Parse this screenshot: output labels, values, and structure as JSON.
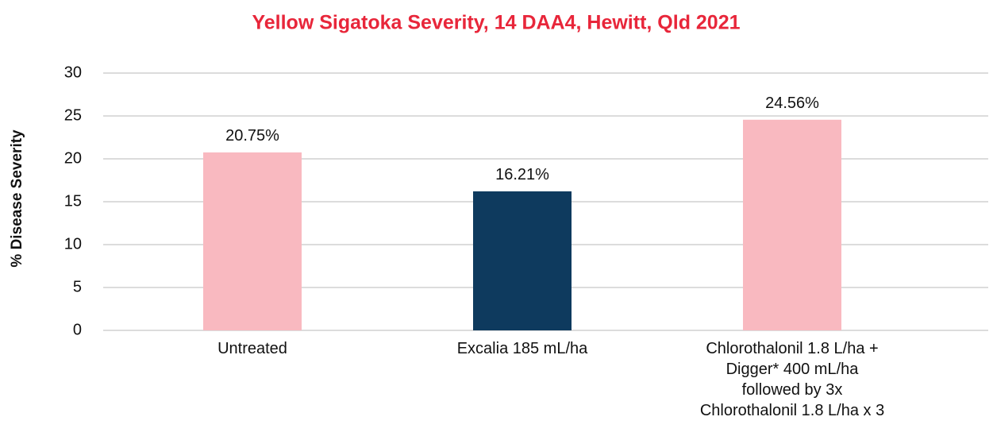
{
  "chart_data": {
    "type": "bar",
    "title": "Yellow Sigatoka Severity, 14 DAA4, Hewitt, Qld 2021",
    "y_label": "% Disease Severity",
    "categories": [
      "Untreated",
      "Excalia 185 mL/ha",
      "Chlorothalonil 1.8 L/ha +\nDigger* 400 mL/ha\nfollowed by 3x\nChlorothalonil 1.8 L/ha x 3"
    ],
    "values": [
      20.75,
      16.21,
      24.56
    ],
    "value_labels": [
      "20.75%",
      "16.21%",
      "24.56%"
    ],
    "colors": [
      "#f9b9c0",
      "#0e3a5e",
      "#f9b9c0"
    ],
    "ylim": [
      0,
      30
    ],
    "yticks": [
      0,
      5,
      10,
      15,
      20,
      25,
      30
    ],
    "grid": true
  }
}
